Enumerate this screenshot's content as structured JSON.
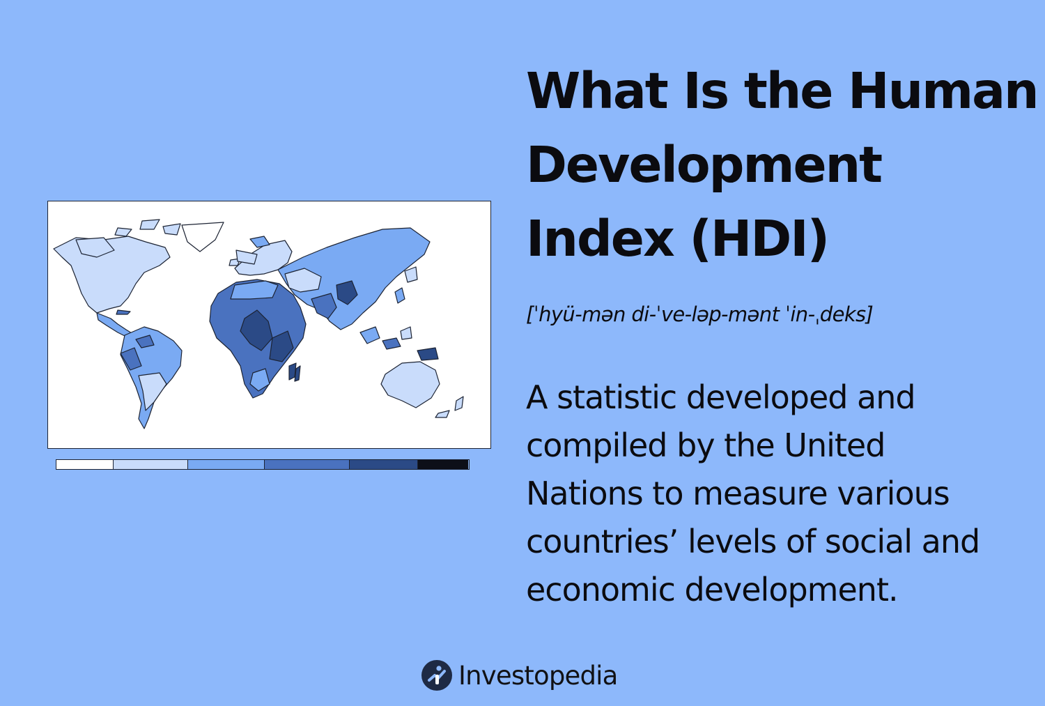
{
  "heading": {
    "lines": [
      "What Is the Human",
      "Development",
      "Index (HDI)"
    ]
  },
  "pronunciation": "[ˈhyü-mən di-ˈve-ləp-mənt ˈin-ˌdeks]",
  "definition": {
    "lines": [
      "A statistic developed and",
      "compiled by the United",
      "Nations to measure various",
      "countries’ levels of social and",
      "economic development."
    ]
  },
  "brand": {
    "name": "Investopedia",
    "icon": "investopedia-logo-icon"
  },
  "illustration": {
    "icon": "world-map-illustration",
    "legend_colors": [
      "#ffffff",
      "#c9dcfb",
      "#7aaaf3",
      "#4a72bf",
      "#2b4a86",
      "#0d0f18"
    ]
  },
  "colors": {
    "background": "#8db8fb",
    "text": "#0b0b0f"
  }
}
